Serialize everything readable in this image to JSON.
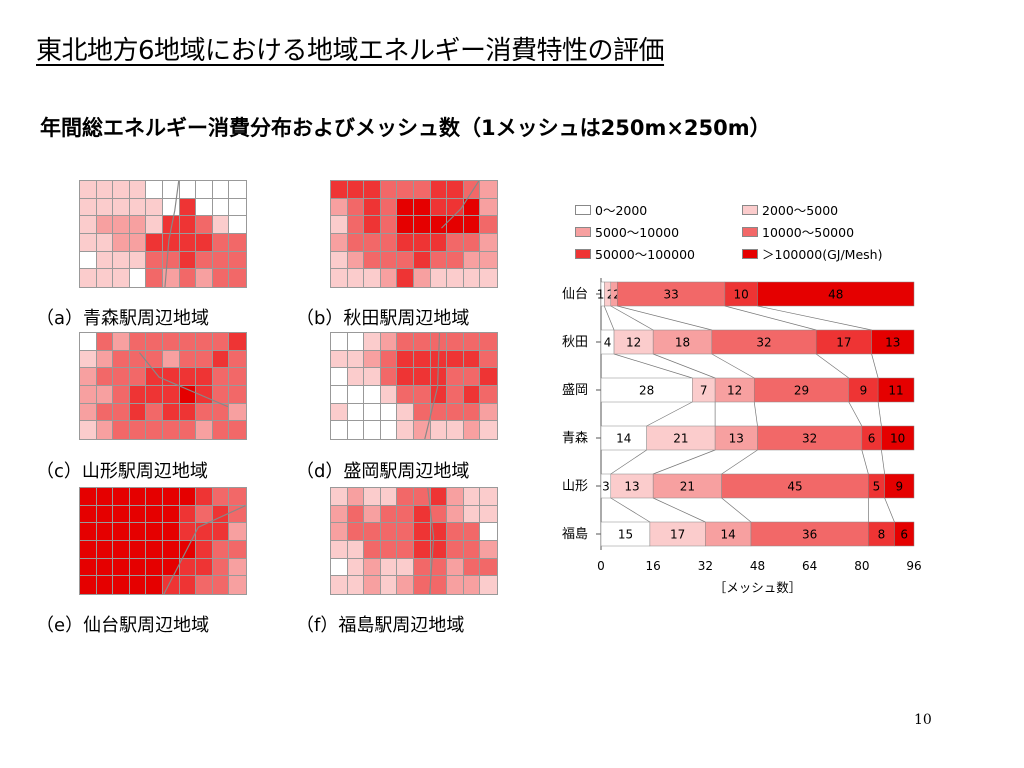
{
  "slide": {
    "title": "東北地方6地域における地域エネルギー消費特性の評価",
    "subtitle": "年間総エネルギー消費分布およびメッシュ数（1メッシュは250m×250m）",
    "page_number": "10"
  },
  "maps": [
    {
      "id": "a",
      "caption": "（a）青森駅周辺地域",
      "levels": [
        [
          1,
          1,
          1,
          1,
          0,
          0,
          0,
          0,
          0,
          0
        ],
        [
          1,
          1,
          1,
          1,
          1,
          0,
          4,
          0,
          0,
          0
        ],
        [
          1,
          2,
          2,
          2,
          1,
          4,
          4,
          3,
          1,
          0
        ],
        [
          1,
          1,
          2,
          2,
          4,
          4,
          4,
          4,
          3,
          3
        ],
        [
          0,
          1,
          1,
          1,
          3,
          3,
          4,
          3,
          3,
          3
        ],
        [
          1,
          1,
          1,
          0,
          3,
          2,
          3,
          2,
          3,
          3
        ]
      ]
    },
    {
      "id": "b",
      "caption": "（b）秋田駅周辺地域",
      "levels": [
        [
          4,
          4,
          4,
          3,
          3,
          3,
          4,
          4,
          3,
          2
        ],
        [
          2,
          3,
          4,
          3,
          5,
          5,
          4,
          4,
          5,
          2
        ],
        [
          1,
          3,
          4,
          3,
          5,
          5,
          5,
          5,
          5,
          3
        ],
        [
          2,
          3,
          3,
          3,
          4,
          4,
          4,
          3,
          3,
          2
        ],
        [
          1,
          2,
          3,
          3,
          3,
          4,
          3,
          3,
          2,
          2
        ],
        [
          1,
          1,
          1,
          2,
          4,
          2,
          1,
          1,
          1,
          1
        ]
      ]
    },
    {
      "id": "c",
      "caption": "（c）山形駅周辺地域",
      "levels": [
        [
          0,
          3,
          2,
          3,
          3,
          3,
          3,
          3,
          3,
          4
        ],
        [
          1,
          2,
          3,
          3,
          3,
          2,
          3,
          3,
          4,
          3
        ],
        [
          2,
          3,
          3,
          3,
          4,
          4,
          4,
          4,
          3,
          3
        ],
        [
          2,
          2,
          3,
          4,
          4,
          4,
          5,
          4,
          3,
          3
        ],
        [
          2,
          3,
          3,
          4,
          3,
          4,
          4,
          3,
          3,
          2
        ],
        [
          1,
          2,
          3,
          3,
          3,
          3,
          3,
          2,
          3,
          3
        ]
      ]
    },
    {
      "id": "d",
      "caption": "（d）盛岡駅周辺地域",
      "levels": [
        [
          0,
          0,
          1,
          2,
          3,
          3,
          3,
          3,
          3,
          3
        ],
        [
          1,
          1,
          2,
          3,
          4,
          4,
          4,
          4,
          4,
          3
        ],
        [
          0,
          1,
          1,
          3,
          4,
          4,
          4,
          3,
          3,
          4
        ],
        [
          0,
          0,
          0,
          1,
          3,
          3,
          4,
          3,
          4,
          3
        ],
        [
          1,
          0,
          0,
          0,
          1,
          3,
          3,
          3,
          3,
          2
        ],
        [
          0,
          0,
          0,
          0,
          1,
          2,
          1,
          1,
          2,
          1
        ]
      ]
    },
    {
      "id": "e",
      "caption": "（e）仙台駅周辺地域",
      "levels": [
        [
          5,
          5,
          5,
          5,
          5,
          5,
          5,
          4,
          3,
          3
        ],
        [
          5,
          5,
          5,
          5,
          5,
          5,
          4,
          3,
          4,
          3
        ],
        [
          5,
          5,
          5,
          5,
          5,
          5,
          4,
          4,
          4,
          2
        ],
        [
          5,
          5,
          5,
          5,
          5,
          5,
          5,
          4,
          3,
          3
        ],
        [
          5,
          5,
          5,
          5,
          5,
          5,
          4,
          4,
          3,
          2
        ],
        [
          5,
          5,
          5,
          5,
          5,
          4,
          4,
          3,
          3,
          2
        ]
      ]
    },
    {
      "id": "f",
      "caption": "（f）福島駅周辺地域",
      "levels": [
        [
          1,
          2,
          1,
          1,
          3,
          3,
          4,
          2,
          1,
          1
        ],
        [
          2,
          3,
          2,
          3,
          3,
          4,
          3,
          2,
          1,
          1
        ],
        [
          2,
          3,
          3,
          3,
          3,
          4,
          4,
          3,
          3,
          0
        ],
        [
          1,
          1,
          3,
          3,
          3,
          4,
          4,
          3,
          3,
          2
        ],
        [
          0,
          1,
          2,
          1,
          1,
          3,
          3,
          2,
          3,
          3
        ],
        [
          1,
          1,
          2,
          1,
          2,
          3,
          3,
          2,
          2,
          1
        ]
      ]
    }
  ],
  "legend": {
    "items": [
      {
        "label": "0～2000",
        "color": "#ffffff"
      },
      {
        "label": "2000～5000",
        "color": "#fbcccc"
      },
      {
        "label": "5000～10000",
        "color": "#f7a0a0"
      },
      {
        "label": "10000～50000",
        "color": "#f26868"
      },
      {
        "label": "50000～100000",
        "color": "#ee3434"
      },
      {
        "label": "＞100000(GJ/Mesh)",
        "color": "#e50000"
      }
    ]
  },
  "chart_data": {
    "type": "bar",
    "orientation": "horizontal",
    "stacked": true,
    "categories": [
      "仙台",
      "秋田",
      "盛岡",
      "青森",
      "山形",
      "福島"
    ],
    "series": [
      {
        "name": "0～2000",
        "color": "#ffffff",
        "values": [
          1,
          4,
          28,
          14,
          3,
          15
        ]
      },
      {
        "name": "2000～5000",
        "color": "#fbcccc",
        "values": [
          2,
          12,
          7,
          21,
          13,
          17
        ]
      },
      {
        "name": "5000～10000",
        "color": "#f7a0a0",
        "values": [
          2,
          18,
          12,
          13,
          21,
          14
        ]
      },
      {
        "name": "10000～50000",
        "color": "#f26868",
        "values": [
          33,
          32,
          29,
          32,
          45,
          36
        ]
      },
      {
        "name": "50000～100000",
        "color": "#ee3434",
        "values": [
          10,
          17,
          9,
          6,
          5,
          8
        ]
      },
      {
        "name": "＞100000(GJ/Mesh)",
        "color": "#e50000",
        "values": [
          48,
          13,
          11,
          10,
          9,
          6
        ]
      }
    ],
    "data_labels": [
      [
        "1",
        "2",
        "2",
        "33",
        "10",
        "48"
      ],
      [
        "4",
        "12",
        "18",
        "32",
        "17",
        "13"
      ],
      [
        "28",
        "7",
        "12",
        "29",
        "9",
        "11"
      ],
      [
        "14",
        "21",
        "13",
        "32",
        "6",
        "10"
      ],
      [
        "3",
        "13",
        "21",
        "45",
        "5",
        "9"
      ],
      [
        "15",
        "17",
        "14",
        "36",
        "8",
        "6"
      ]
    ],
    "xlim": [
      0,
      96
    ],
    "xticks": [
      0,
      16,
      32,
      48,
      64,
      80,
      96
    ],
    "xlabel": "［メッシュ数］",
    "connector_lines": true,
    "legend_position": "top"
  }
}
